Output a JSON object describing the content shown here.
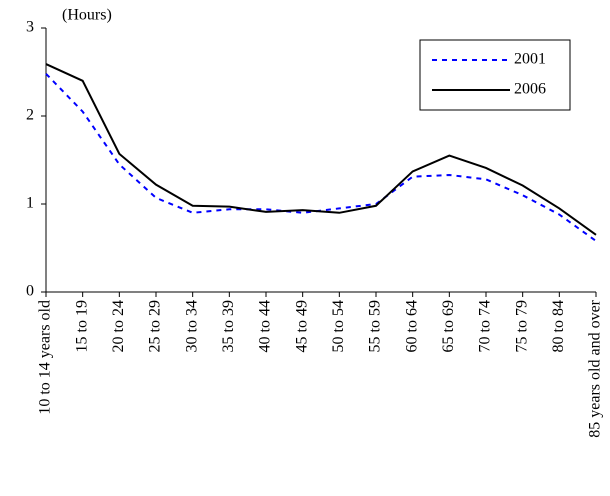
{
  "chart_data": {
    "type": "line",
    "y_label": "(Hours)",
    "categories": [
      "10 to 14 years old",
      "15 to 19",
      "20 to 24",
      "25 to 29",
      "30 to 34",
      "35 to 39",
      "40 to 44",
      "45 to 49",
      "50 to 54",
      "55 to 59",
      "60 to 64",
      "65 to 69",
      "70 to 74",
      "75 to 79",
      "80 to 84",
      "85 years old and over"
    ],
    "series": [
      {
        "name": "2001",
        "color": "#0000ff",
        "dash": true,
        "values": [
          2.48,
          2.05,
          1.45,
          1.07,
          0.9,
          0.94,
          0.94,
          0.9,
          0.95,
          1.0,
          1.31,
          1.33,
          1.28,
          1.1,
          0.88,
          0.58
        ]
      },
      {
        "name": "2006",
        "color": "#000000",
        "dash": false,
        "values": [
          2.59,
          2.4,
          1.57,
          1.22,
          0.98,
          0.97,
          0.91,
          0.93,
          0.9,
          0.98,
          1.37,
          1.55,
          1.41,
          1.21,
          0.95,
          0.65
        ]
      }
    ],
    "ylim": [
      0,
      3
    ],
    "yticks": [
      0,
      1,
      2,
      3
    ],
    "grid": false,
    "legend": "upper-right"
  }
}
